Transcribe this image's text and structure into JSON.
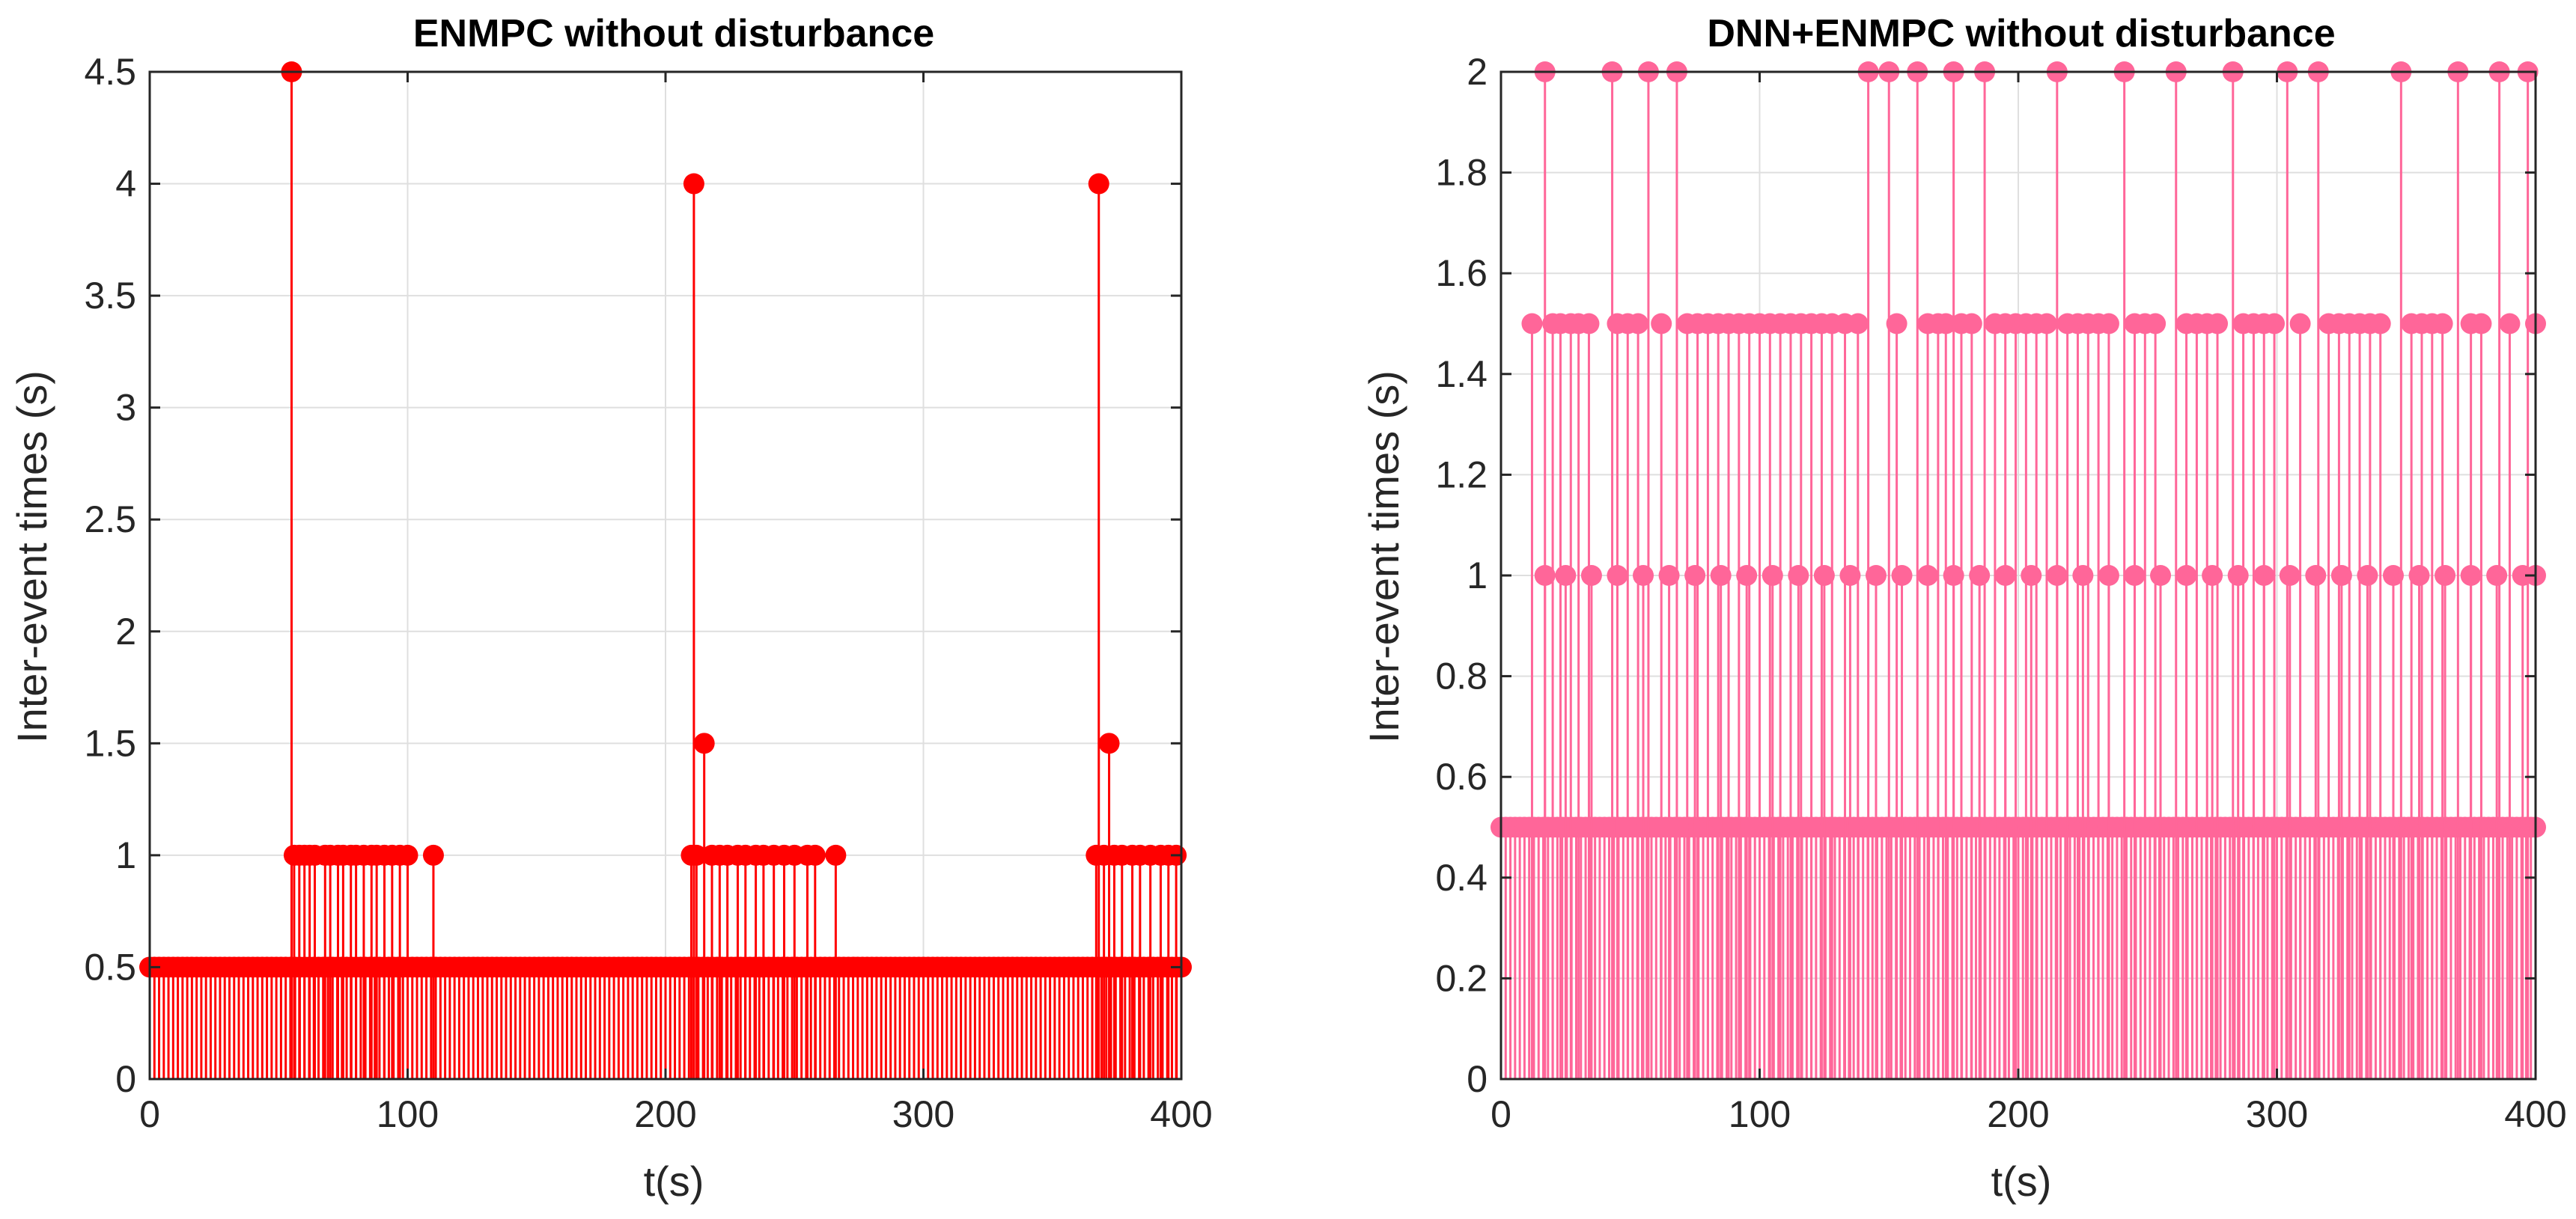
{
  "figure": {
    "background": "#ffffff",
    "grid_color": "#dfdfdf",
    "axis_color": "#262626"
  },
  "chart_data": [
    {
      "type": "stem",
      "title": "ENMPC without disturbance",
      "xlabel": "t(s)",
      "ylabel": "Inter-event times (s)",
      "xlim": [
        0,
        400
      ],
      "ylim": [
        0,
        4.5
      ],
      "xticks": [
        0,
        100,
        200,
        300,
        400
      ],
      "xtick_labels": [
        "0",
        "100",
        "200",
        "300",
        "400"
      ],
      "yticks": [
        0,
        0.5,
        1,
        1.5,
        2,
        2.5,
        3,
        3.5,
        4,
        4.5
      ],
      "ytick_labels": [
        "0",
        "0.5",
        "1",
        "1.5",
        "2",
        "2.5",
        "3",
        "3.5",
        "4",
        "4.5"
      ],
      "grid": true,
      "color": "#ff0000",
      "baseline_value": 0.5,
      "series": [
        {
          "name": "inter-event times",
          "points": [
            [
              55,
              4.5
            ],
            [
              211,
              4.0
            ],
            [
              368,
              4.0
            ],
            [
              215,
              1.5
            ],
            [
              372,
              1.5
            ],
            [
              56,
              1.0
            ],
            [
              58,
              1.0
            ],
            [
              60,
              1.0
            ],
            [
              62,
              1.0
            ],
            [
              64,
              1.0
            ],
            [
              68,
              1.0
            ],
            [
              70,
              1.0
            ],
            [
              73,
              1.0
            ],
            [
              75,
              1.0
            ],
            [
              78,
              1.0
            ],
            [
              80,
              1.0
            ],
            [
              83,
              1.0
            ],
            [
              86,
              1.0
            ],
            [
              88,
              1.0
            ],
            [
              91,
              1.0
            ],
            [
              94,
              1.0
            ],
            [
              97,
              1.0
            ],
            [
              100,
              1.0
            ],
            [
              110,
              1.0
            ],
            [
              210,
              1.0
            ],
            [
              212,
              1.0
            ],
            [
              218,
              1.0
            ],
            [
              221,
              1.0
            ],
            [
              224,
              1.0
            ],
            [
              228,
              1.0
            ],
            [
              231,
              1.0
            ],
            [
              235,
              1.0
            ],
            [
              238,
              1.0
            ],
            [
              242,
              1.0
            ],
            [
              246,
              1.0
            ],
            [
              250,
              1.0
            ],
            [
              255,
              1.0
            ],
            [
              258,
              1.0
            ],
            [
              266,
              1.0
            ],
            [
              367,
              1.0
            ],
            [
              370,
              1.0
            ],
            [
              374,
              1.0
            ],
            [
              377,
              1.0
            ],
            [
              381,
              1.0
            ],
            [
              384,
              1.0
            ],
            [
              388,
              1.0
            ],
            [
              392,
              1.0
            ],
            [
              395,
              1.0
            ],
            [
              398,
              1.0
            ]
          ]
        }
      ]
    },
    {
      "type": "stem",
      "title": "DNN+ENMPC without disturbance",
      "xlabel": "t(s)",
      "ylabel": "Inter-event times (s)",
      "xlim": [
        0,
        400
      ],
      "ylim": [
        0,
        2
      ],
      "xticks": [
        0,
        100,
        200,
        300,
        400
      ],
      "xtick_labels": [
        "0",
        "100",
        "200",
        "300",
        "400"
      ],
      "yticks": [
        0,
        0.2,
        0.4,
        0.6,
        0.8,
        1,
        1.2,
        1.4,
        1.6,
        1.8,
        2
      ],
      "ytick_labels": [
        "0",
        "0.2",
        "0.4",
        "0.6",
        "0.8",
        "1",
        "1.2",
        "1.4",
        "1.6",
        "1.8",
        "2"
      ],
      "grid": true,
      "color": "#ff6699",
      "baseline_value": 0.5,
      "series": [
        {
          "name": "inter-event times",
          "points": [
            [
              17,
              2.0
            ],
            [
              43,
              2.0
            ],
            [
              57,
              2.0
            ],
            [
              68,
              2.0
            ],
            [
              142,
              2.0
            ],
            [
              150,
              2.0
            ],
            [
              161,
              2.0
            ],
            [
              175,
              2.0
            ],
            [
              187,
              2.0
            ],
            [
              215,
              2.0
            ],
            [
              241,
              2.0
            ],
            [
              261,
              2.0
            ],
            [
              283,
              2.0
            ],
            [
              304,
              2.0
            ],
            [
              316,
              2.0
            ],
            [
              348,
              2.0
            ],
            [
              370,
              2.0
            ],
            [
              386,
              2.0
            ],
            [
              397,
              2.0
            ],
            [
              12,
              1.5
            ],
            [
              20,
              1.5
            ],
            [
              23,
              1.5
            ],
            [
              27,
              1.5
            ],
            [
              30,
              1.5
            ],
            [
              34,
              1.5
            ],
            [
              45,
              1.5
            ],
            [
              49,
              1.5
            ],
            [
              53,
              1.5
            ],
            [
              62,
              1.5
            ],
            [
              72,
              1.5
            ],
            [
              76,
              1.5
            ],
            [
              80,
              1.5
            ],
            [
              84,
              1.5
            ],
            [
              88,
              1.5
            ],
            [
              92,
              1.5
            ],
            [
              96,
              1.5
            ],
            [
              100,
              1.5
            ],
            [
              104,
              1.5
            ],
            [
              108,
              1.5
            ],
            [
              112,
              1.5
            ],
            [
              116,
              1.5
            ],
            [
              120,
              1.5
            ],
            [
              124,
              1.5
            ],
            [
              128,
              1.5
            ],
            [
              133,
              1.5
            ],
            [
              138,
              1.5
            ],
            [
              153,
              1.5
            ],
            [
              165,
              1.5
            ],
            [
              169,
              1.5
            ],
            [
              172,
              1.5
            ],
            [
              178,
              1.5
            ],
            [
              182,
              1.5
            ],
            [
              191,
              1.5
            ],
            [
              195,
              1.5
            ],
            [
              199,
              1.5
            ],
            [
              203,
              1.5
            ],
            [
              207,
              1.5
            ],
            [
              211,
              1.5
            ],
            [
              219,
              1.5
            ],
            [
              223,
              1.5
            ],
            [
              227,
              1.5
            ],
            [
              231,
              1.5
            ],
            [
              235,
              1.5
            ],
            [
              245,
              1.5
            ],
            [
              249,
              1.5
            ],
            [
              253,
              1.5
            ],
            [
              265,
              1.5
            ],
            [
              269,
              1.5
            ],
            [
              273,
              1.5
            ],
            [
              277,
              1.5
            ],
            [
              287,
              1.5
            ],
            [
              291,
              1.5
            ],
            [
              295,
              1.5
            ],
            [
              299,
              1.5
            ],
            [
              309,
              1.5
            ],
            [
              320,
              1.5
            ],
            [
              324,
              1.5
            ],
            [
              328,
              1.5
            ],
            [
              332,
              1.5
            ],
            [
              336,
              1.5
            ],
            [
              340,
              1.5
            ],
            [
              352,
              1.5
            ],
            [
              356,
              1.5
            ],
            [
              360,
              1.5
            ],
            [
              364,
              1.5
            ],
            [
              375,
              1.5
            ],
            [
              379,
              1.5
            ],
            [
              390,
              1.5
            ],
            [
              400,
              1.5
            ],
            [
              17,
              1.0
            ],
            [
              25,
              1.0
            ],
            [
              35,
              1.0
            ],
            [
              45,
              1.0
            ],
            [
              55,
              1.0
            ],
            [
              65,
              1.0
            ],
            [
              75,
              1.0
            ],
            [
              85,
              1.0
            ],
            [
              95,
              1.0
            ],
            [
              105,
              1.0
            ],
            [
              115,
              1.0
            ],
            [
              125,
              1.0
            ],
            [
              135,
              1.0
            ],
            [
              145,
              1.0
            ],
            [
              155,
              1.0
            ],
            [
              165,
              1.0
            ],
            [
              175,
              1.0
            ],
            [
              185,
              1.0
            ],
            [
              195,
              1.0
            ],
            [
              205,
              1.0
            ],
            [
              215,
              1.0
            ],
            [
              225,
              1.0
            ],
            [
              235,
              1.0
            ],
            [
              245,
              1.0
            ],
            [
              255,
              1.0
            ],
            [
              265,
              1.0
            ],
            [
              275,
              1.0
            ],
            [
              285,
              1.0
            ],
            [
              295,
              1.0
            ],
            [
              305,
              1.0
            ],
            [
              315,
              1.0
            ],
            [
              325,
              1.0
            ],
            [
              335,
              1.0
            ],
            [
              345,
              1.0
            ],
            [
              355,
              1.0
            ],
            [
              365,
              1.0
            ],
            [
              375,
              1.0
            ],
            [
              385,
              1.0
            ],
            [
              395,
              1.0
            ],
            [
              400,
              1.0
            ]
          ]
        }
      ]
    }
  ]
}
